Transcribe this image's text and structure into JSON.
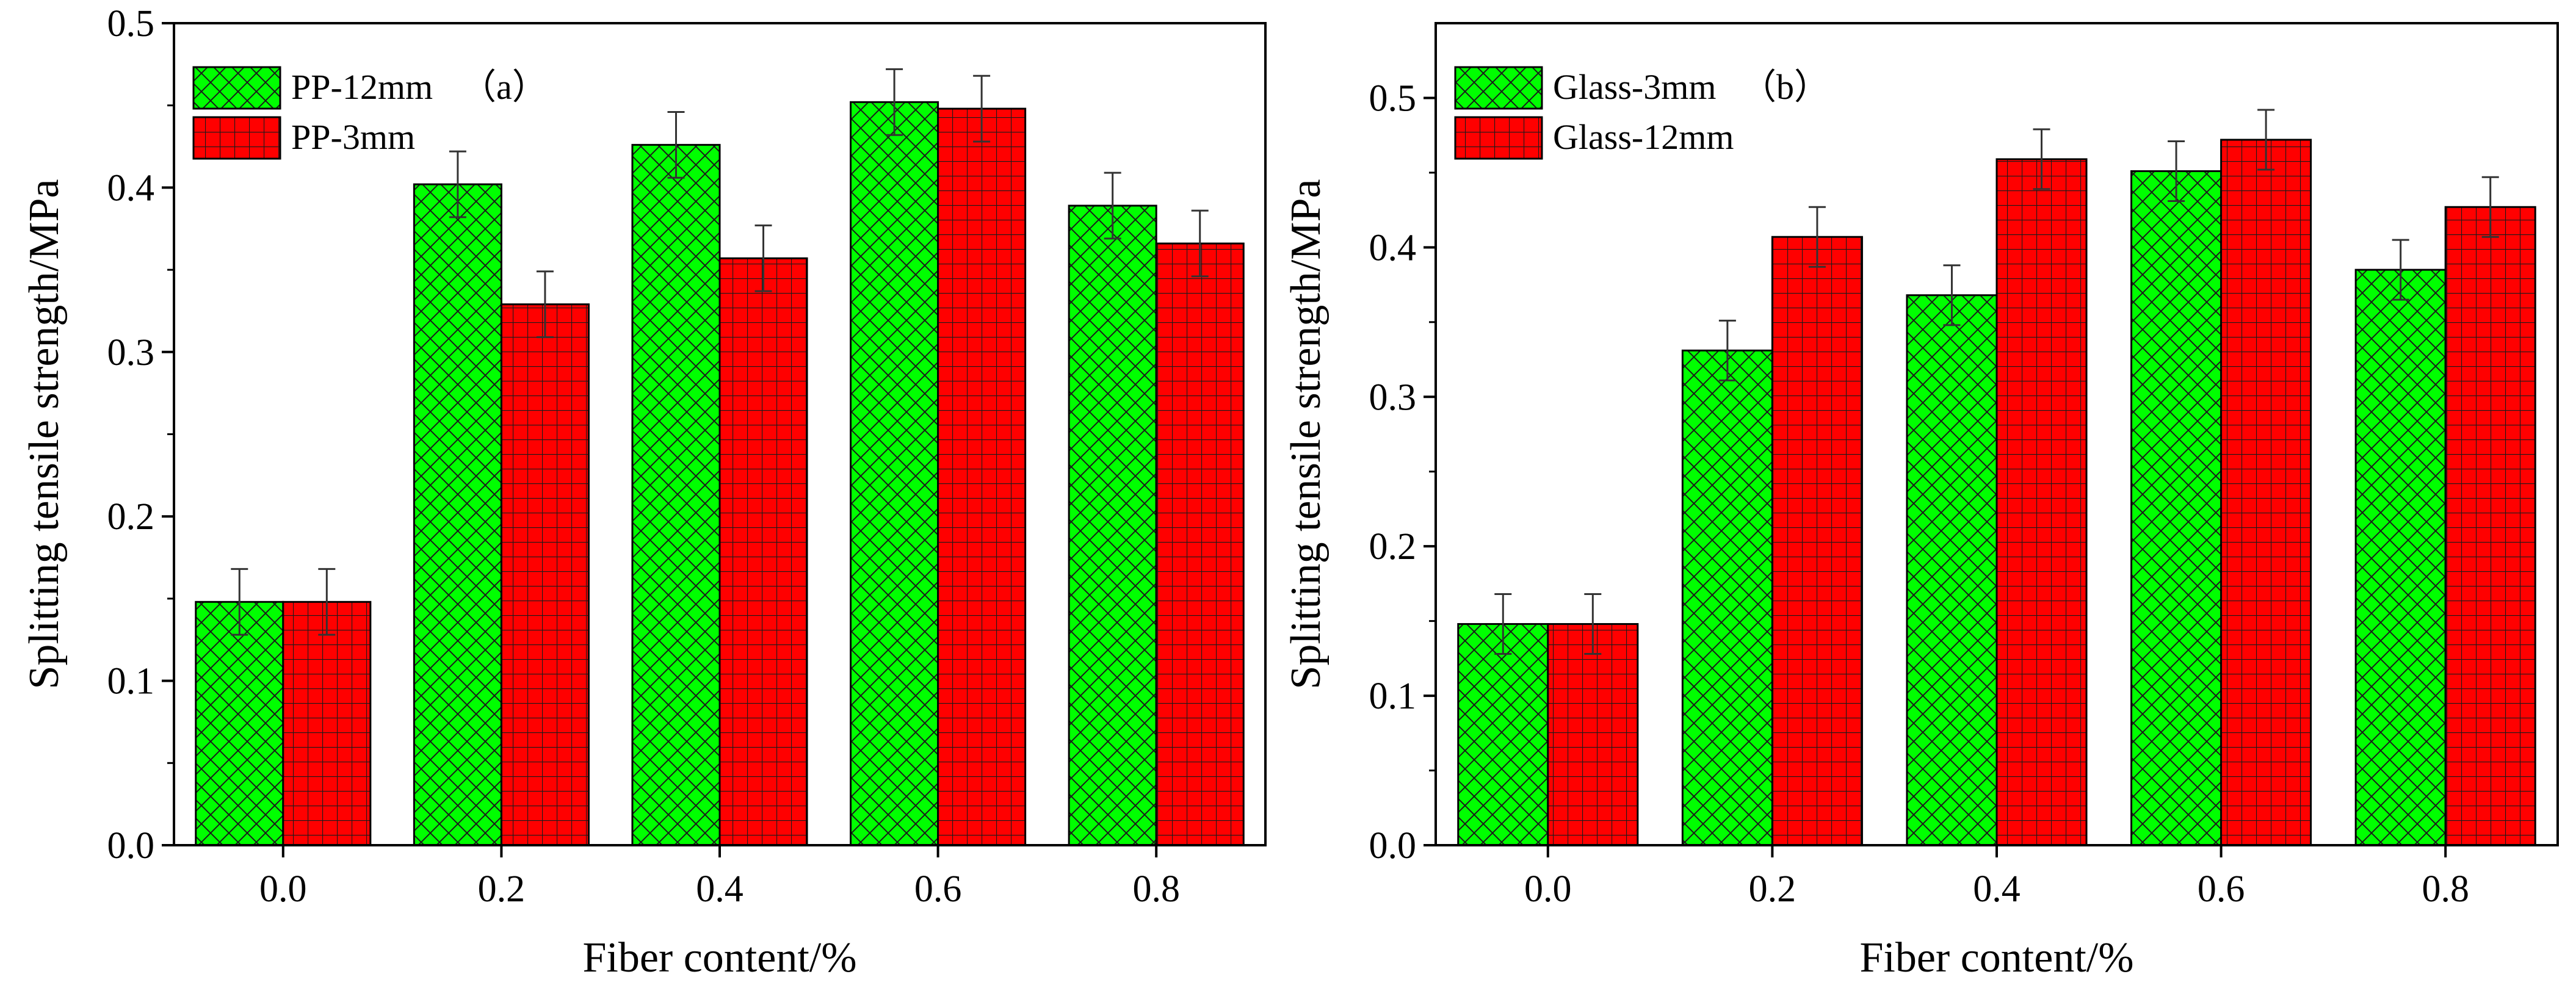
{
  "colors": {
    "green": "#00ff00",
    "red": "#ff0000",
    "hatch_line": "#1a1a1a"
  },
  "chart_data": [
    {
      "type": "bar",
      "panel_label": "（a）",
      "xlabel": "Fiber content/%",
      "ylabel": "Splitting tensile strength/MPa",
      "categories": [
        "0.0",
        "0.2",
        "0.4",
        "0.6",
        "0.8"
      ],
      "ylim": [
        0,
        0.5
      ],
      "yticks": [
        "0.0",
        "0.1",
        "0.2",
        "0.3",
        "0.4",
        "0.5"
      ],
      "legend_position": "top-left",
      "grid": false,
      "series": [
        {
          "name": "PP-12mm",
          "color": "#00ff00",
          "pattern": "crosshatch-diagonal",
          "values": [
            0.148,
            0.402,
            0.426,
            0.452,
            0.389
          ],
          "errors": [
            0.02,
            0.02,
            0.02,
            0.02,
            0.02
          ]
        },
        {
          "name": "PP-3mm",
          "color": "#ff0000",
          "pattern": "grid",
          "values": [
            0.148,
            0.329,
            0.357,
            0.448,
            0.366
          ],
          "errors": [
            0.02,
            0.02,
            0.02,
            0.02,
            0.02
          ]
        }
      ]
    },
    {
      "type": "bar",
      "panel_label": "（b）",
      "xlabel": "Fiber content/%",
      "ylabel": "Splitting tensile strength/MPa",
      "categories": [
        "0.0",
        "0.2",
        "0.4",
        "0.6",
        "0.8"
      ],
      "ylim": [
        0,
        0.55
      ],
      "yticks": [
        "0.0",
        "0.1",
        "0.2",
        "0.3",
        "0.4",
        "0.5"
      ],
      "legend_position": "top-left",
      "grid": false,
      "series": [
        {
          "name": "Glass-3mm",
          "color": "#00ff00",
          "pattern": "crosshatch-diagonal",
          "values": [
            0.148,
            0.331,
            0.368,
            0.451,
            0.385
          ],
          "errors": [
            0.02,
            0.02,
            0.02,
            0.02,
            0.02
          ]
        },
        {
          "name": "Glass-12mm",
          "color": "#ff0000",
          "pattern": "grid",
          "values": [
            0.148,
            0.407,
            0.459,
            0.472,
            0.427
          ],
          "errors": [
            0.02,
            0.02,
            0.02,
            0.02,
            0.02
          ]
        }
      ]
    }
  ]
}
